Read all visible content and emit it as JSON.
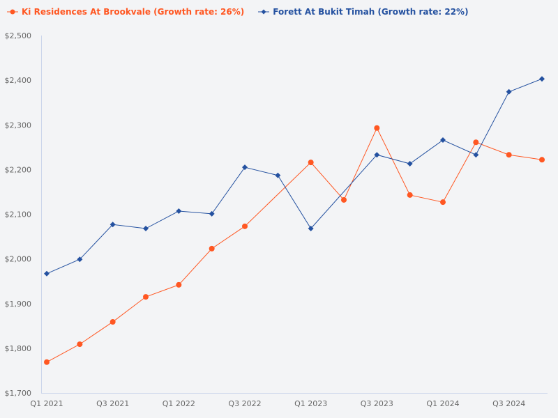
{
  "chart_data": {
    "type": "line",
    "title": "",
    "xlabel": "",
    "ylabel": "",
    "ylim": [
      1700,
      2500
    ],
    "grid": false,
    "legend_placement": "top-left",
    "categories": [
      "Q1 2021",
      "Q2 2021",
      "Q3 2021",
      "Q4 2021",
      "Q1 2022",
      "Q2 2022",
      "Q3 2022",
      "Q4 2022",
      "Q1 2023",
      "Q2 2023",
      "Q3 2023",
      "Q4 2023",
      "Q1 2024",
      "Q2 2024",
      "Q3 2024",
      "Q4 2024"
    ],
    "x_tick_labels": [
      "Q1 2021",
      "Q3 2021",
      "Q1 2022",
      "Q3 2022",
      "Q1 2023",
      "Q3 2023",
      "Q1 2024",
      "Q3 2024"
    ],
    "y_tick_labels": [
      "$1,700",
      "$1,800",
      "$1,900",
      "$2,000",
      "$2,100",
      "$2,200",
      "$2,300",
      "$2,400",
      "$2,500"
    ],
    "y_ticks": [
      1700,
      1800,
      1900,
      2000,
      2100,
      2200,
      2300,
      2400,
      2500
    ],
    "series": [
      {
        "name": "Ki Residences At Brookvale (Growth rate: 26%)",
        "color": "#ff5722",
        "marker": "circle",
        "values": [
          1769,
          1809,
          1859,
          1915,
          1942,
          2023,
          2073,
          null,
          2216,
          2132,
          2293,
          2143,
          2127,
          2261,
          2233,
          2222
        ]
      },
      {
        "name": "Forett At Bukit Timah (Growth rate: 22%)",
        "color": "#2451a0",
        "marker": "diamond",
        "values": [
          1967,
          1999,
          2077,
          2068,
          2107,
          2101,
          2205,
          2187,
          2068,
          null,
          2233,
          2213,
          2266,
          2233,
          2374,
          2403
        ]
      }
    ]
  }
}
